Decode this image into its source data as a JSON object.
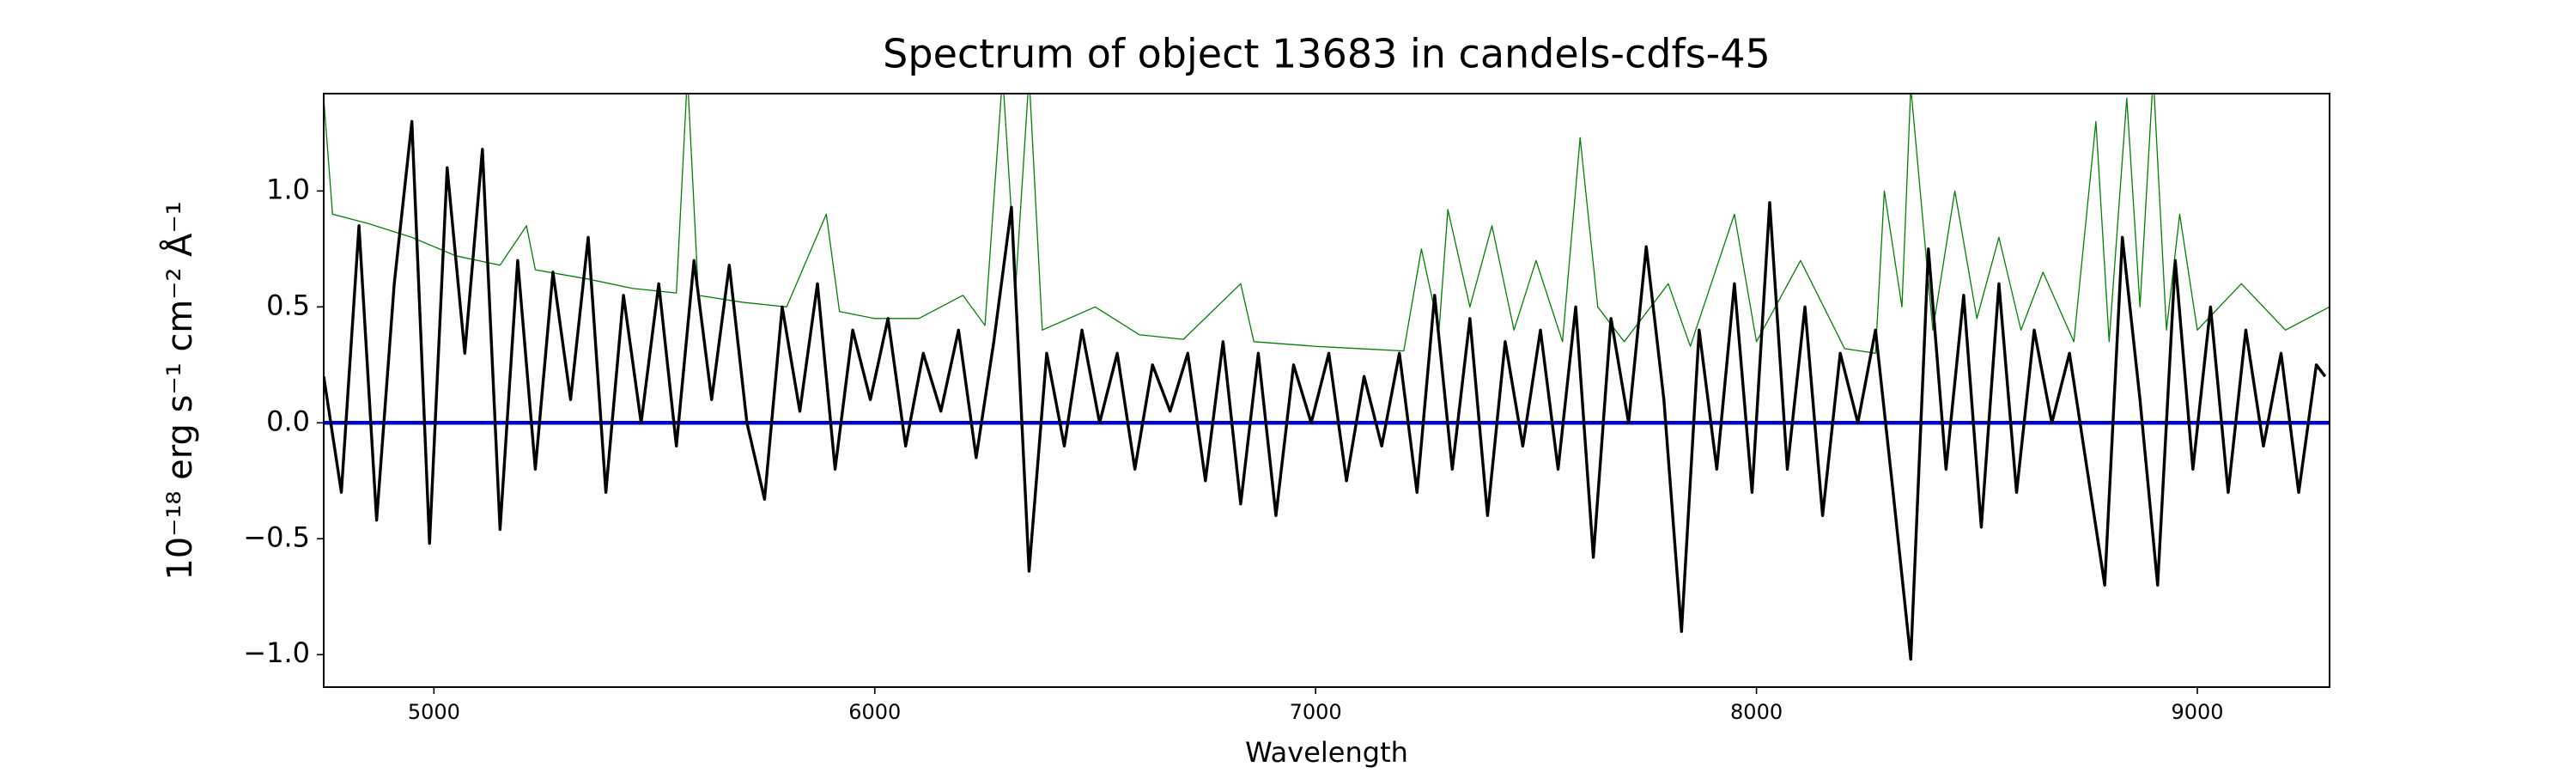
{
  "chart_data": {
    "type": "line",
    "title": "Spectrum of object 13683 in candels-cdfs-45",
    "xlabel": "Wavelength",
    "ylabel": "10⁻¹⁸ erg s⁻¹ cm⁻² Å⁻¹",
    "xlim": [
      4750,
      9300
    ],
    "ylim": [
      -1.14,
      1.42
    ],
    "xticks": [
      5000,
      6000,
      7000,
      8000,
      9000
    ],
    "yticks": [
      {
        "value": -1,
        "label": "−1.0"
      },
      {
        "value": -0.5,
        "label": "−0.5"
      },
      {
        "value": 0,
        "label": "0.0"
      },
      {
        "value": 0.5,
        "label": "0.5"
      },
      {
        "value": 1,
        "label": "1.0"
      }
    ],
    "series": [
      {
        "color": "#008000",
        "width": 1.3,
        "x": [
          4750,
          4770,
          4850,
          4950,
          5050,
          5150,
          5210,
          5230,
          5350,
          5450,
          5550,
          5575,
          5600,
          5700,
          5800,
          5890,
          5920,
          6000,
          6100,
          6200,
          6250,
          6290,
          6320,
          6350,
          6380,
          6500,
          6600,
          6700,
          6830,
          6860,
          7000,
          7100,
          7200,
          7240,
          7280,
          7300,
          7350,
          7400,
          7450,
          7500,
          7560,
          7600,
          7640,
          7700,
          7800,
          7850,
          7950,
          8000,
          8100,
          8200,
          8270,
          8290,
          8330,
          8350,
          8400,
          8450,
          8500,
          8550,
          8600,
          8650,
          8720,
          8770,
          8800,
          8840,
          8870,
          8900,
          8930,
          8960,
          9000,
          9100,
          9200,
          9300
        ],
        "values": [
          1.4,
          0.9,
          0.86,
          0.8,
          0.72,
          0.68,
          0.85,
          0.66,
          0.62,
          0.58,
          0.56,
          1.5,
          0.55,
          0.52,
          0.5,
          0.9,
          0.48,
          0.45,
          0.45,
          0.55,
          0.42,
          1.5,
          0.6,
          1.5,
          0.4,
          0.5,
          0.38,
          0.36,
          0.6,
          0.35,
          0.33,
          0.32,
          0.31,
          0.75,
          0.4,
          0.92,
          0.5,
          0.85,
          0.4,
          0.7,
          0.35,
          1.23,
          0.5,
          0.35,
          0.6,
          0.33,
          0.9,
          0.35,
          0.7,
          0.32,
          0.3,
          1.0,
          0.5,
          1.45,
          0.4,
          1.0,
          0.45,
          0.8,
          0.4,
          0.65,
          0.35,
          1.3,
          0.35,
          1.4,
          0.5,
          1.5,
          0.4,
          0.9,
          0.4,
          0.6,
          0.4,
          0.5
        ]
      },
      {
        "color": "#0000cc",
        "width": 4.5,
        "x": [
          4750,
          9300
        ],
        "values": [
          0,
          0
        ]
      },
      {
        "color": "#000000",
        "width": 3.4,
        "x": [
          4750,
          4790,
          4830,
          4870,
          4910,
          4950,
          4990,
          5030,
          5070,
          5110,
          5150,
          5190,
          5230,
          5270,
          5310,
          5350,
          5390,
          5430,
          5470,
          5510,
          5550,
          5590,
          5630,
          5670,
          5710,
          5750,
          5790,
          5830,
          5870,
          5910,
          5950,
          5990,
          6030,
          6070,
          6110,
          6150,
          6190,
          6230,
          6270,
          6310,
          6350,
          6390,
          6430,
          6470,
          6510,
          6550,
          6590,
          6630,
          6670,
          6710,
          6750,
          6790,
          6830,
          6870,
          6910,
          6950,
          6990,
          7030,
          7070,
          7110,
          7150,
          7190,
          7230,
          7270,
          7310,
          7350,
          7390,
          7430,
          7470,
          7510,
          7550,
          7590,
          7630,
          7670,
          7710,
          7750,
          7790,
          7830,
          7870,
          7910,
          7950,
          7990,
          8030,
          8070,
          8110,
          8150,
          8190,
          8230,
          8270,
          8310,
          8350,
          8390,
          8430,
          8470,
          8510,
          8550,
          8590,
          8630,
          8670,
          8710,
          8750,
          8790,
          8830,
          8870,
          8910,
          8950,
          8990,
          9030,
          9070,
          9110,
          9150,
          9190,
          9230,
          9270,
          9290
        ],
        "values": [
          0.2,
          -0.3,
          0.85,
          -0.42,
          0.6,
          1.3,
          -0.52,
          1.1,
          0.3,
          1.18,
          -0.46,
          0.7,
          -0.2,
          0.65,
          0.1,
          0.8,
          -0.3,
          0.55,
          0,
          0.6,
          -0.1,
          0.7,
          0.1,
          0.68,
          0,
          -0.33,
          0.5,
          0.05,
          0.6,
          -0.2,
          0.4,
          0.1,
          0.45,
          -0.1,
          0.3,
          0.05,
          0.4,
          -0.15,
          0.35,
          0.93,
          -0.64,
          0.3,
          -0.1,
          0.4,
          0,
          0.3,
          -0.2,
          0.25,
          0.05,
          0.3,
          -0.25,
          0.35,
          -0.35,
          0.3,
          -0.4,
          0.25,
          0,
          0.3,
          -0.25,
          0.2,
          -0.1,
          0.3,
          -0.3,
          0.55,
          -0.2,
          0.45,
          -0.4,
          0.35,
          -0.1,
          0.4,
          -0.2,
          0.5,
          -0.58,
          0.45,
          0,
          0.76,
          0.1,
          -0.9,
          0.4,
          -0.2,
          0.6,
          -0.3,
          0.95,
          -0.2,
          0.5,
          -0.4,
          0.3,
          0,
          0.4,
          -0.3,
          -1.02,
          0.75,
          -0.2,
          0.55,
          -0.45,
          0.6,
          -0.3,
          0.4,
          0,
          0.3,
          -0.2,
          -0.7,
          0.8,
          0.1,
          -0.7,
          0.7,
          -0.2,
          0.5,
          -0.3,
          0.4,
          -0.1,
          0.3,
          -0.3,
          0.25,
          0.2
        ]
      }
    ]
  }
}
